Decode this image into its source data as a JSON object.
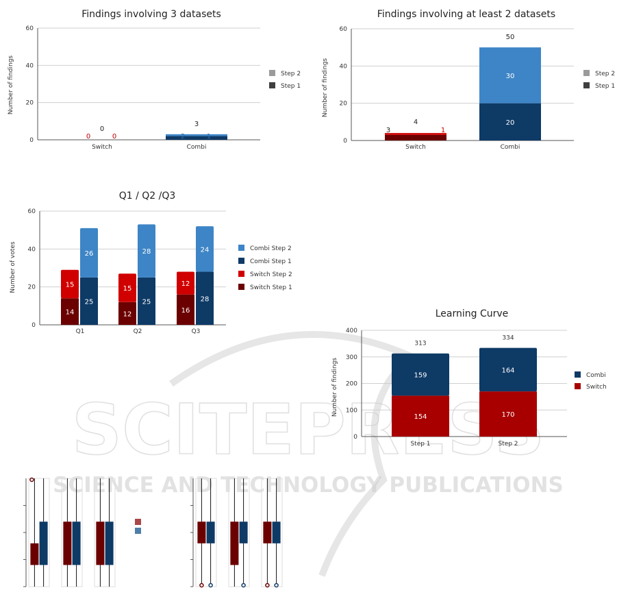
{
  "watermark": {
    "main": "SCITEPRESS",
    "sub": "SCIENCE AND TECHNOLOGY PUBLICATIONS"
  },
  "colors": {
    "step1_gray": "#3f3f3f",
    "step2_gray": "#9a9a9a",
    "combi_step1": "#0e3a66",
    "combi_step2": "#3d85c6",
    "switch_step1": "#6b0000",
    "switch_step2": "#d00000",
    "combi": "#0e3a66",
    "switch": "#a80000",
    "label_red": "#c00000",
    "label_blue": "#2f6eb5"
  },
  "chart_data": [
    {
      "id": "c3",
      "type": "bar",
      "title": "Findings involving 3 datasets",
      "ylabel": "Number of findings",
      "xlabel": "",
      "ylim": [
        0,
        60
      ],
      "yticks": [
        0,
        20,
        40,
        60
      ],
      "categories": [
        "Switch",
        "Combi"
      ],
      "series": [
        {
          "name": "Step 1",
          "values": [
            0,
            2
          ],
          "label_color": [
            "red",
            "blue"
          ]
        },
        {
          "name": "Step 2",
          "values": [
            0,
            1
          ],
          "label_color": [
            "red",
            "blue"
          ]
        }
      ],
      "totals": [
        0,
        3
      ],
      "legend": [
        "Step 2",
        "Step 1"
      ]
    },
    {
      "id": "c2",
      "type": "bar",
      "title": "Findings involving at least 2 datasets",
      "ylabel": "Number of findings",
      "xlabel": "",
      "ylim": [
        0,
        60
      ],
      "yticks": [
        0,
        20,
        40,
        60
      ],
      "categories": [
        "Switch",
        "Combi"
      ],
      "series": [
        {
          "name": "Step 1",
          "values": [
            3,
            20
          ]
        },
        {
          "name": "Step 2",
          "values": [
            1,
            30
          ]
        }
      ],
      "totals": [
        4,
        50
      ],
      "legend": [
        "Step 2",
        "Step 1"
      ]
    },
    {
      "id": "cq",
      "type": "bar",
      "title": "Q1 / Q2 /Q3",
      "ylabel": "Number of votes",
      "xlabel": "",
      "ylim": [
        0,
        60
      ],
      "yticks": [
        0,
        20,
        40,
        60
      ],
      "categories": [
        "Q1",
        "Q2",
        "Q3"
      ],
      "series": [
        {
          "name": "Switch Step 1",
          "values": [
            14,
            12,
            16
          ]
        },
        {
          "name": "Switch Step 2",
          "values": [
            15,
            15,
            12
          ]
        },
        {
          "name": "Combi Step 1",
          "values": [
            25,
            25,
            28
          ]
        },
        {
          "name": "Combi Step 2",
          "values": [
            26,
            28,
            24
          ]
        }
      ],
      "legend": [
        "Combi Step 2",
        "Combi Step 1",
        "Switch Step 2",
        "Switch Step 1"
      ]
    },
    {
      "id": "lc",
      "type": "bar",
      "title": "Learning Curve",
      "ylabel": "Number of findings",
      "xlabel": "",
      "ylim": [
        0,
        400
      ],
      "yticks": [
        0,
        100,
        200,
        300,
        400
      ],
      "categories": [
        "Step 1",
        "Step 2"
      ],
      "series": [
        {
          "name": "Switch",
          "values": [
            154,
            170
          ]
        },
        {
          "name": "Combi",
          "values": [
            159,
            164
          ]
        }
      ],
      "totals": [
        313,
        334
      ],
      "legend": [
        "Combi",
        "Switch"
      ]
    },
    {
      "id": "bp",
      "type": "box",
      "title": "",
      "note": "Partially visible box plots, no labels shown",
      "groups_left": [
        {
          "switch": [
            0.2,
            0.4
          ],
          "combi": [
            0.2,
            0.6
          ],
          "outlier_switch": true
        },
        {
          "switch": [
            0.2,
            0.6
          ],
          "combi": [
            0.2,
            0.6
          ]
        },
        {
          "switch": [
            0.2,
            0.6
          ],
          "combi": [
            0.2,
            0.6
          ]
        }
      ],
      "groups_right": [
        {
          "switch": [
            0.4,
            0.6
          ],
          "combi": [
            0.4,
            0.6
          ],
          "outliers": [
            "switch",
            "combi"
          ]
        },
        {
          "switch": [
            0.2,
            0.6
          ],
          "combi": [
            0.4,
            0.6
          ],
          "outliers": [
            "combi"
          ]
        },
        {
          "switch": [
            0.4,
            0.6
          ],
          "combi": [
            0.4,
            0.6
          ],
          "outliers": [
            "switch",
            "combi"
          ]
        }
      ]
    }
  ]
}
